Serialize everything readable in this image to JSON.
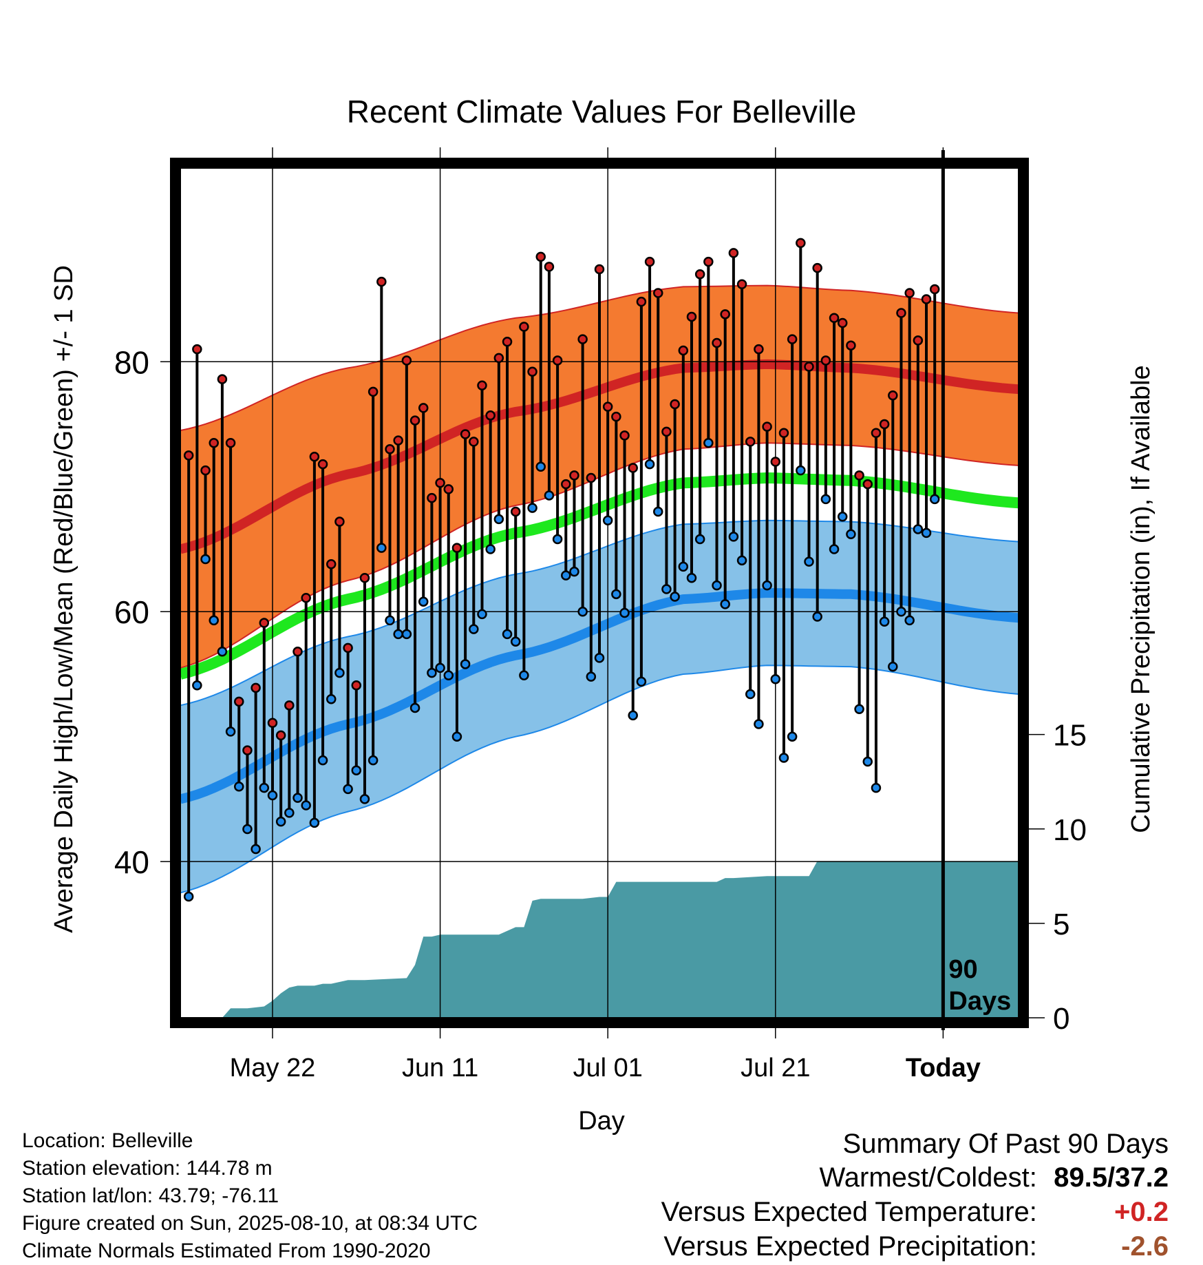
{
  "chart_data": {
    "type": "line",
    "title": "Recent Climate Values For Belleville",
    "xlabel": "Day",
    "ylabel": "Average Daily High/Low/Mean (Red/Blue/Green) +/- 1 SD",
    "y2label": "Cumulative Precipitation (in), If Available",
    "ylim": [
      27.5,
      95.5
    ],
    "y2lim": [
      0,
      45
    ],
    "y_ticks": [
      40,
      60,
      80
    ],
    "y2_ticks": [
      0,
      5,
      10,
      15
    ],
    "x_tick_labels": [
      "May 22",
      "Jun 11",
      "Jul 01",
      "Jul 21",
      "Today"
    ],
    "x_tick_days": [
      11,
      31,
      51,
      71,
      91
    ],
    "x_range_days": [
      0,
      100
    ],
    "period_label": "90 Days",
    "grid": true,
    "colors": {
      "high": "#d02424",
      "high_band": "#f47a30",
      "low": "#1e88e8",
      "low_band": "#86c1e8",
      "mean": "#1ee81e",
      "precip": "#4a9aa4"
    },
    "normals": {
      "days": [
        0,
        20,
        40,
        60,
        70,
        80,
        100
      ],
      "mean_high": [
        65.0,
        71.0,
        76.0,
        79.5,
        79.8,
        79.5,
        77.8
      ],
      "sd_high": [
        9.5,
        8.5,
        7.5,
        6.5,
        6.3,
        6.2,
        6.1
      ],
      "mean_low": [
        45.0,
        51.0,
        56.5,
        61.0,
        61.5,
        61.4,
        59.5
      ],
      "sd_low": [
        7.5,
        7.0,
        6.5,
        6.0,
        5.8,
        5.8,
        6.1
      ],
      "mean": [
        55.0,
        61.0,
        66.3,
        70.3,
        70.7,
        70.5,
        68.7
      ]
    },
    "series": [
      {
        "name": "High",
        "values": [
          72.5,
          81.0,
          71.3,
          73.5,
          78.6,
          73.5,
          52.8,
          48.9,
          53.9,
          59.1,
          51.1,
          50.1,
          52.5,
          56.8,
          61.1,
          72.4,
          71.8,
          63.8,
          67.2,
          57.1,
          54.1,
          62.7,
          77.6,
          86.4,
          73.0,
          73.7,
          80.1,
          75.3,
          76.3,
          69.1,
          70.3,
          69.8,
          65.1,
          74.2,
          73.6,
          78.1,
          75.7,
          80.3,
          81.6,
          68.0,
          82.8,
          79.2,
          88.4,
          87.6,
          80.1,
          70.2,
          70.9,
          81.8,
          70.7,
          87.4,
          76.4,
          75.6,
          74.1,
          71.5,
          84.8,
          88.0,
          85.5,
          74.4,
          76.6,
          80.9,
          83.6,
          87.0,
          88.0,
          81.5,
          83.8,
          88.7,
          86.2,
          73.6,
          81.0,
          74.8,
          72.0,
          74.3,
          81.8,
          89.5,
          79.6,
          87.5,
          80.1,
          83.5,
          83.1,
          81.3,
          70.9,
          70.2,
          74.3,
          75.0,
          77.3,
          83.9,
          85.5,
          81.7,
          85.0,
          85.8
        ]
      },
      {
        "name": "Low",
        "values": [
          37.2,
          54.1,
          64.2,
          59.3,
          56.8,
          50.4,
          46.0,
          42.6,
          41.0,
          45.9,
          45.3,
          43.2,
          43.9,
          45.1,
          44.5,
          43.1,
          48.1,
          53.0,
          55.1,
          45.8,
          47.3,
          45.0,
          48.1,
          65.1,
          59.3,
          58.2,
          58.2,
          52.3,
          60.8,
          55.1,
          55.5,
          54.9,
          50.0,
          55.8,
          58.6,
          59.8,
          65.0,
          67.4,
          58.2,
          57.6,
          54.9,
          68.3,
          71.6,
          69.3,
          65.8,
          62.9,
          63.2,
          60.0,
          54.8,
          56.3,
          67.3,
          61.4,
          59.9,
          51.7,
          54.4,
          71.8,
          68.0,
          61.8,
          61.2,
          63.6,
          62.7,
          65.8,
          73.5,
          62.1,
          60.6,
          66.0,
          64.1,
          53.4,
          51.0,
          62.1,
          54.6,
          48.3,
          50.0,
          71.3,
          64.0,
          59.6,
          69.0,
          65.0,
          67.6,
          66.2,
          52.2,
          48.0,
          45.9,
          59.2,
          55.6,
          60.0,
          59.3,
          66.6,
          66.3,
          69.0
        ]
      },
      {
        "name": "Cumulative Precipitation",
        "days": [
          0,
          5,
          6,
          8,
          10,
          11,
          12,
          13,
          14,
          16,
          17,
          18,
          20,
          22,
          27,
          28,
          29,
          30,
          31,
          33,
          38,
          40,
          41,
          42,
          43,
          48,
          50,
          51,
          52,
          54,
          60,
          64,
          65,
          66,
          70,
          71,
          72,
          75,
          76,
          100
        ],
        "values": [
          0,
          0,
          0.5,
          0.5,
          0.6,
          0.9,
          1.3,
          1.6,
          1.7,
          1.7,
          1.8,
          1.8,
          2.0,
          2.0,
          2.1,
          2.8,
          4.3,
          4.3,
          4.4,
          4.4,
          4.4,
          4.8,
          4.8,
          6.2,
          6.3,
          6.3,
          6.4,
          6.4,
          7.2,
          7.2,
          7.2,
          7.2,
          7.4,
          7.4,
          7.5,
          7.5,
          7.5,
          7.5,
          8.3,
          8.3
        ]
      }
    ]
  },
  "footer": {
    "location": "Location: Belleville",
    "elevation": "Station elevation: 144.78 m",
    "latlon": "Station lat/lon: 43.79; -76.11",
    "created": "Figure created on Sun, 2025-08-10, at 08:34 UTC",
    "normals": "Climate Normals Estimated From 1990-2020"
  },
  "summary": {
    "title": "Summary Of Past 90 Days",
    "warmest_coldest_label": "Warmest/Coldest:",
    "warmest_coldest_value": "89.5/37.2",
    "temp_label": "Versus Expected Temperature:",
    "temp_value": "+0.2",
    "temp_color": "#d02424",
    "precip_label": "Versus Expected Precipitation:",
    "precip_value": "-2.6",
    "precip_color": "#a0522d"
  }
}
